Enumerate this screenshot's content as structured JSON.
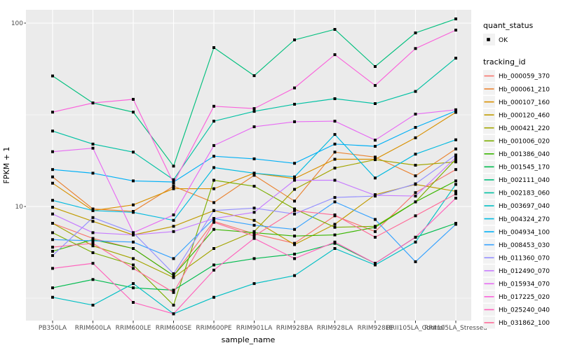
{
  "figure": {
    "background": "#FFFFFF",
    "panel_background": "#EBEBEB",
    "grid_color": "#FFFFFF",
    "point_color": "#000000",
    "axis_text_color": "#4D4D4D",
    "x_axis_title": "sample_name",
    "y_axis_title": "FPKM + 1"
  },
  "legend": {
    "quant_status_title": "quant_status",
    "quant_status_items": [
      {
        "label": "OK"
      }
    ],
    "tracking_id_title": "tracking_id"
  },
  "chart_data": {
    "type": "line",
    "x_type": "categorical",
    "title": "",
    "xlabel": "sample_name",
    "ylabel": "FPKM + 1",
    "y_scale": "log10",
    "ylim": [
      2.3,
      120
    ],
    "y_major_ticks": [
      10,
      100
    ],
    "y_major_tick_labels": [
      "10",
      "100"
    ],
    "y_minor_ticks": [
      3.162,
      31.623
    ],
    "grid": true,
    "legend_position": "right",
    "point_shape": "square",
    "quant_status": "OK",
    "categories": [
      "PB350LA",
      "RRIM600LA",
      "RRIM600LE",
      "RRIM600SE",
      "RRIM600PE",
      "RRIM901LA",
      "RRIM928BA",
      "RRIM928LA",
      "RRIM928LE",
      "RRII105LA_Control",
      "RRII105LA_Stressed"
    ],
    "series": [
      {
        "name": "Hb_000059_370",
        "color": "#F8766D",
        "values": [
          8.1,
          6.7,
          5.9,
          4.2,
          8.3,
          7.1,
          6.3,
          8.9,
          7.3,
          11.9,
          15.9
        ]
      },
      {
        "name": "Hb_000061_210",
        "color": "#EA8331",
        "values": [
          14.5,
          9.7,
          9.4,
          12.9,
          10.5,
          14.8,
          10.7,
          19.8,
          18.6,
          14.7,
          20.6
        ]
      },
      {
        "name": "Hb_000107_160",
        "color": "#D89000",
        "values": [
          13.4,
          9.5,
          10.2,
          12.5,
          12.5,
          15.2,
          14.2,
          18.1,
          18.1,
          23.7,
          32.6
        ]
      },
      {
        "name": "Hb_000120_460",
        "color": "#C09B00",
        "values": [
          9.9,
          8.3,
          7.0,
          7.8,
          9.5,
          8.4,
          6.2,
          8.0,
          11.6,
          13.2,
          12.1
        ]
      },
      {
        "name": "Hb_000421_220",
        "color": "#A3A500",
        "values": [
          8.1,
          6.1,
          5.2,
          4.1,
          5.9,
          7.3,
          12.4,
          16.2,
          18.0,
          16.8,
          17.5
        ]
      },
      {
        "name": "Hb_001006_020",
        "color": "#7CAE00",
        "values": [
          7.2,
          5.6,
          4.8,
          2.9,
          13.9,
          12.9,
          9.7,
          7.7,
          7.8,
          10.6,
          18.1
        ]
      },
      {
        "name": "Hb_001386_040",
        "color": "#39B600",
        "values": [
          5.7,
          6.6,
          5.9,
          4.2,
          7.5,
          7.2,
          6.9,
          7.0,
          7.7,
          10.6,
          13.8
        ]
      },
      {
        "name": "Hb_001545_170",
        "color": "#00BB4E",
        "values": [
          3.6,
          4.0,
          3.6,
          3.5,
          4.8,
          5.2,
          5.5,
          6.3,
          4.9,
          6.8,
          8.1
        ]
      },
      {
        "name": "Hb_002111_040",
        "color": "#00BF7D",
        "values": [
          51.5,
          36.7,
          32.7,
          16.6,
          73.5,
          51.7,
          81.0,
          92.4,
          58.0,
          88.4,
          105.4
        ]
      },
      {
        "name": "Hb_002183_060",
        "color": "#00C1A3",
        "values": [
          25.8,
          21.9,
          19.8,
          14.0,
          29.2,
          33.0,
          36.1,
          38.7,
          36.4,
          42.4,
          64.4
        ]
      },
      {
        "name": "Hb_003697_040",
        "color": "#00BFC4",
        "values": [
          3.2,
          2.9,
          3.8,
          2.6,
          3.2,
          3.8,
          4.2,
          5.9,
          4.8,
          6.4,
          13.2
        ]
      },
      {
        "name": "Hb_004324_270",
        "color": "#00BAE0",
        "values": [
          10.8,
          9.5,
          9.3,
          8.4,
          16.3,
          15.2,
          14.5,
          24.7,
          14.3,
          19.3,
          23.1
        ]
      },
      {
        "name": "Hb_004934_100",
        "color": "#00B0F6",
        "values": [
          15.9,
          15.2,
          13.8,
          13.6,
          18.8,
          18.2,
          17.2,
          21.9,
          21.3,
          27.0,
          33.2
        ]
      },
      {
        "name": "Hb_008453_030",
        "color": "#35A2FF",
        "values": [
          6.6,
          6.5,
          6.4,
          5.2,
          8.6,
          7.9,
          7.5,
          10.6,
          8.5,
          5.0,
          8.0
        ]
      },
      {
        "name": "Hb_011360_070",
        "color": "#9590FF",
        "values": [
          5.4,
          8.7,
          7.2,
          4.3,
          9.5,
          9.8,
          9.1,
          11.2,
          11.4,
          13.3,
          19.1
        ]
      },
      {
        "name": "Hb_012490_070",
        "color": "#C77CFF",
        "values": [
          9.1,
          7.2,
          7.0,
          7.3,
          8.6,
          9.3,
          13.9,
          13.9,
          11.5,
          11.4,
          18.5
        ]
      },
      {
        "name": "Hb_015934_070",
        "color": "#E76BF3",
        "values": [
          19.9,
          20.8,
          7.2,
          9.0,
          21.5,
          27.2,
          29.0,
          29.2,
          23.0,
          31.9,
          33.7
        ]
      },
      {
        "name": "Hb_017225_020",
        "color": "#FA62DB",
        "values": [
          32.7,
          36.7,
          38.4,
          13.4,
          35.2,
          34.2,
          44.3,
          67.3,
          45.7,
          72.7,
          91.6
        ]
      },
      {
        "name": "Hb_025240_040",
        "color": "#FF62BC",
        "values": [
          4.6,
          4.9,
          3.0,
          2.6,
          4.5,
          6.7,
          5.2,
          6.4,
          4.9,
          6.8,
          11.1
        ]
      },
      {
        "name": "Hb_031862_100",
        "color": "#FF6A98",
        "values": [
          6.0,
          6.3,
          4.6,
          3.4,
          8.2,
          6.9,
          9.5,
          9.0,
          6.8,
          8.9,
          11.7
        ]
      }
    ]
  }
}
